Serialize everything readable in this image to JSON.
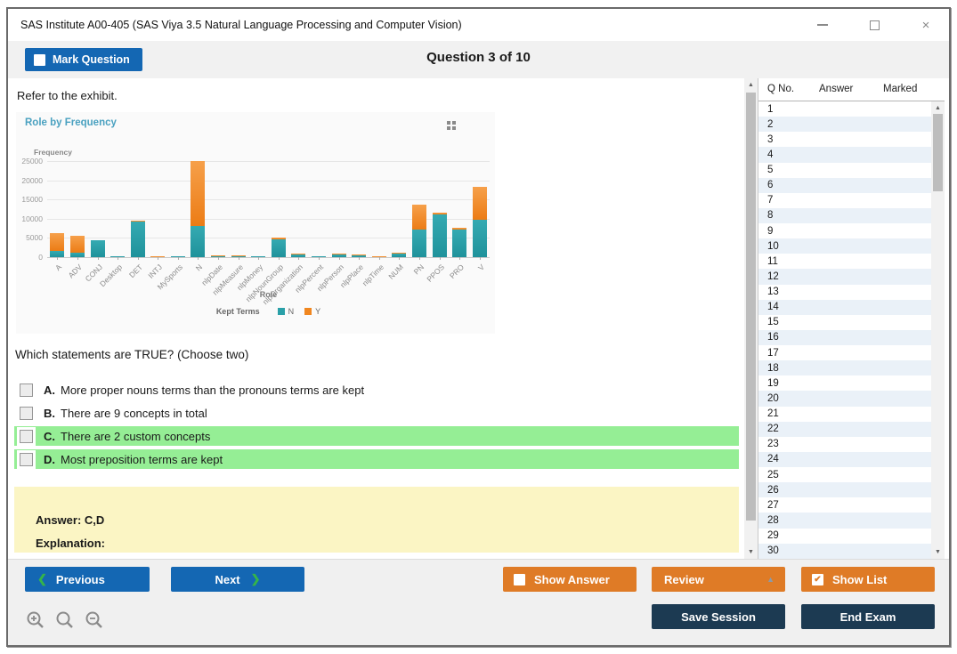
{
  "window": {
    "title": "SAS Institute A00-405 (SAS Viya 3.5 Natural Language Processing and Computer Vision)",
    "close_glyph": "×"
  },
  "header": {
    "mark_question_label": "Mark Question",
    "question_counter": "Question 3 of 10"
  },
  "main": {
    "exhibit_intro": "Refer to the exhibit.",
    "question": "Which statements are TRUE? (Choose two)",
    "options": [
      {
        "letter": "A.",
        "text": "More proper nouns terms than the pronouns terms are kept",
        "highlighted": false
      },
      {
        "letter": "B.",
        "text": "There are 9 concepts in total",
        "highlighted": false
      },
      {
        "letter": "C.",
        "text": "There are 2 custom concepts",
        "highlighted": true
      },
      {
        "letter": "D.",
        "text": "Most preposition terms are kept",
        "highlighted": true
      }
    ],
    "answer_label": "Answer: C,D",
    "explanation_label": "Explanation:"
  },
  "chart_data": {
    "type": "bar",
    "stacked": true,
    "title": "Role by Frequency",
    "xlabel": "Role",
    "ylabel": "Frequency",
    "legend_title": "Kept Terms",
    "legend_position": "bottom",
    "grid": true,
    "ylim": [
      0,
      25000
    ],
    "yticks": [
      0,
      5000,
      10000,
      15000,
      20000,
      25000
    ],
    "categories": [
      "A",
      "ADV",
      "CONJ",
      "Desktop",
      "DET",
      "INTJ",
      "MySports",
      "N",
      "nlpDate",
      "nlpMeasure",
      "nlpMoney",
      "nlpNounGroup",
      "nlpOrganization",
      "nlpPercent",
      "nlpPerson",
      "nlpPlace",
      "nlpTime",
      "NUM",
      "PN",
      "PPOS",
      "PRO",
      "V"
    ],
    "series": [
      {
        "name": "N",
        "color": "#2aa0a8",
        "values": [
          1700,
          1200,
          4300,
          200,
          9300,
          100,
          100,
          8200,
          150,
          150,
          200,
          4600,
          600,
          150,
          700,
          400,
          100,
          1000,
          7200,
          11200,
          7200,
          9800
        ]
      },
      {
        "name": "Y",
        "color": "#f0861f",
        "values": [
          4600,
          4400,
          200,
          0,
          200,
          200,
          150,
          16800,
          350,
          250,
          50,
          600,
          300,
          50,
          300,
          300,
          200,
          100,
          6500,
          300,
          400,
          8600
        ]
      }
    ]
  },
  "sidebar": {
    "columns": [
      "Q No.",
      "Answer",
      "Marked"
    ],
    "rows": [
      "1",
      "2",
      "3",
      "4",
      "5",
      "6",
      "7",
      "8",
      "9",
      "10",
      "11",
      "12",
      "13",
      "14",
      "15",
      "16",
      "17",
      "18",
      "19",
      "20",
      "21",
      "22",
      "23",
      "24",
      "25",
      "26",
      "27",
      "28",
      "29",
      "30"
    ]
  },
  "footer": {
    "previous_label": "Previous",
    "next_label": "Next",
    "show_answer_label": "Show Answer",
    "review_label": "Review",
    "show_list_label": "Show List",
    "save_session_label": "Save Session",
    "end_exam_label": "End Exam"
  },
  "icons": {
    "prev_chevron": "❮",
    "next_chevron": "❯",
    "review_caret": "▲",
    "scroll_up": "▲",
    "scroll_down": "▼",
    "checkmark": "✔"
  },
  "colors": {
    "accent_blue": "#1467b3",
    "accent_orange": "#df7b26",
    "navy": "#1c3a52",
    "highlight_green": "#95ee95",
    "answer_yellow": "#fbf5c4",
    "bar_teal": "#2aa0a8",
    "bar_orange": "#f0861f",
    "chart_title_teal": "#4aa1c0"
  }
}
